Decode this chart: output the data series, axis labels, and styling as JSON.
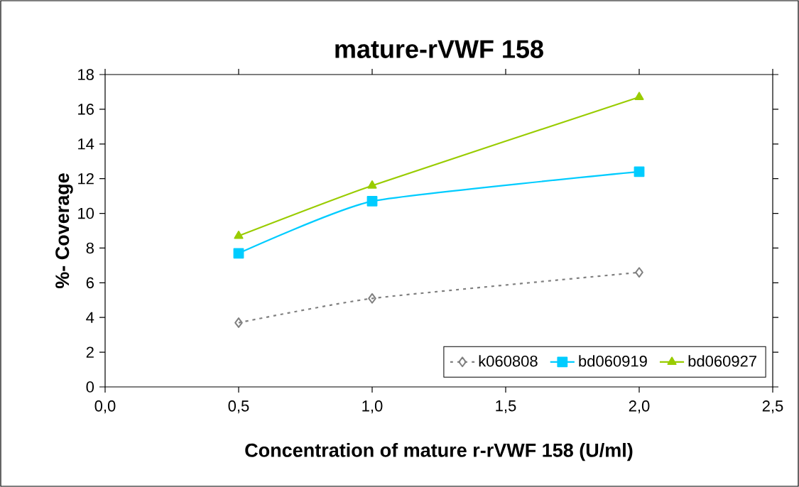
{
  "chart_data": {
    "type": "line",
    "title": "mature-rVWF 158",
    "xlabel": "Concentration of mature r-rVWF 158 (U/ml)",
    "ylabel": "%- Coverage",
    "x": [
      0.5,
      1.0,
      2.0
    ],
    "series": [
      {
        "name": "k060808",
        "color": "#808080",
        "values": [
          3.7,
          5.1,
          6.6
        ],
        "marker": "diamond",
        "line_style": "dotted"
      },
      {
        "name": "bd060919",
        "color": "#00ccff",
        "values": [
          7.7,
          10.7,
          12.4
        ],
        "marker": "square",
        "line_style": "solid"
      },
      {
        "name": "bd060927",
        "color": "#99cc00",
        "values": [
          8.7,
          11.6,
          16.7
        ],
        "marker": "triangle",
        "line_style": "solid"
      }
    ],
    "xlim": [
      0,
      2.5
    ],
    "xticks": [
      {
        "value": 0,
        "label": "0,0"
      },
      {
        "value": 0.5,
        "label": "0,5"
      },
      {
        "value": 1.0,
        "label": "1,0"
      },
      {
        "value": 1.5,
        "label": "1,5"
      },
      {
        "value": 2.0,
        "label": "2,0"
      },
      {
        "value": 2.5,
        "label": "2,5"
      }
    ],
    "ylim": [
      0,
      18
    ],
    "yticks": [
      0,
      2,
      4,
      6,
      8,
      10,
      12,
      14,
      16,
      18
    ],
    "grid": false,
    "legend": "bottom right"
  }
}
